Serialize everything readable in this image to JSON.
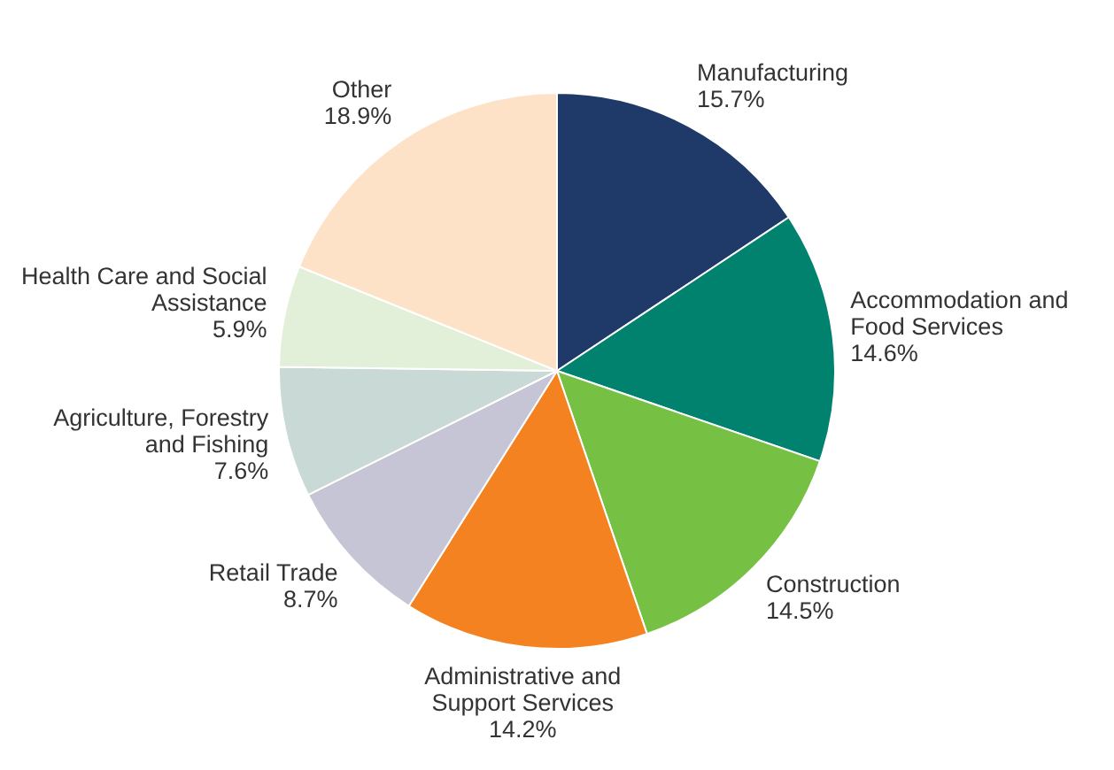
{
  "chart_data": {
    "type": "pie",
    "categories": [
      "Manufacturing",
      "Accommodation and Food Services",
      "Construction",
      "Administrative and Support Services",
      "Retail Trade",
      "Agriculture, Forestry and Fishing",
      "Health Care and Social Assistance",
      "Other"
    ],
    "values": [
      15.7,
      14.6,
      14.5,
      14.2,
      8.7,
      7.6,
      5.9,
      18.9
    ],
    "value_labels": [
      "15.7%",
      "14.6%",
      "14.5%",
      "14.2%",
      "8.7%",
      "7.6%",
      "5.9%",
      "18.9%"
    ],
    "colors": [
      "#1f3a68",
      "#00826f",
      "#76c043",
      "#f58220",
      "#c5c5d5",
      "#c9d9d5",
      "#e2efd9",
      "#fde2c8"
    ],
    "legend": false
  }
}
